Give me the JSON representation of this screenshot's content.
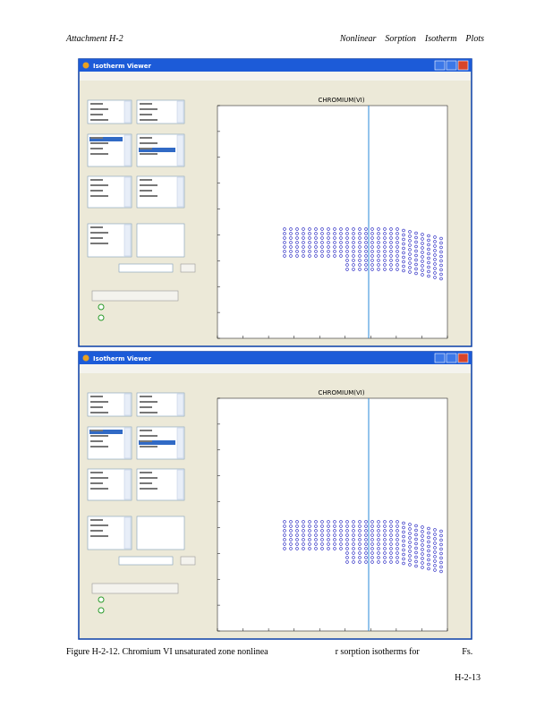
{
  "header": {
    "left": "Attachment    H-2",
    "right": "Nonlinear    Sorption    Isotherm    Plots"
  },
  "windows": [
    {
      "title": "Isotherm Viewer",
      "plot_title": "CHROMIUM(VI)"
    },
    {
      "title": "Isotherm Viewer",
      "plot_title": "CHROMIUM(VI)"
    }
  ],
  "caption": "Figure H-2-12. Chromium VI unsaturated zone nonlinea                              r sorption isotherms for                   Fs.",
  "page_number": "H-2-13"
}
